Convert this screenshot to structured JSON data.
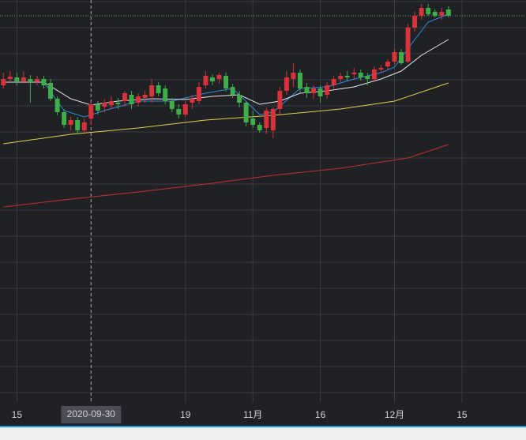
{
  "chart_data": {
    "type": "candlestick",
    "categories": [
      null,
      null,
      "15",
      null,
      null,
      null,
      null,
      null,
      null,
      null,
      null,
      null,
      null,
      "2020-09-30",
      null,
      null,
      null,
      null,
      null,
      null,
      null,
      null,
      null,
      null,
      null,
      null,
      null,
      "19",
      null,
      null,
      null,
      null,
      null,
      null,
      null,
      null,
      null,
      "11月",
      null,
      null,
      null,
      null,
      null,
      null,
      null,
      null,
      null,
      "16",
      null,
      null,
      null,
      null,
      null,
      null,
      null,
      null,
      null,
      null,
      "12月",
      null,
      null,
      null,
      null,
      null,
      null,
      null,
      null,
      null,
      "15",
      null,
      null,
      null,
      null,
      null,
      null,
      null,
      null,
      null
    ],
    "open": [
      402,
      410,
      412,
      407,
      410,
      407,
      410,
      405,
      385,
      368,
      352,
      358,
      345,
      360,
      378,
      375,
      377,
      380,
      382,
      390,
      380,
      386,
      388,
      402,
      398,
      382,
      372,
      365,
      380,
      382,
      402,
      412,
      410,
      414,
      400,
      390,
      380,
      360,
      352,
      348,
      345,
      372,
      395,
      410,
      418,
      400,
      392,
      398,
      390,
      402,
      410,
      414,
      416,
      418,
      414,
      410,
      422,
      426,
      432,
      444,
      432,
      475,
      490,
      500,
      495,
      490,
      498,
      null,
      null,
      null,
      null,
      null,
      null,
      null,
      null,
      null,
      null,
      null
    ],
    "high": [
      418,
      420,
      418,
      420,
      415,
      414,
      414,
      410,
      388,
      372,
      362,
      362,
      360,
      382,
      382,
      385,
      388,
      386,
      395,
      395,
      392,
      395,
      410,
      406,
      402,
      386,
      378,
      382,
      390,
      406,
      420,
      416,
      418,
      418,
      404,
      395,
      382,
      370,
      355,
      374,
      374,
      400,
      420,
      430,
      422,
      405,
      402,
      402,
      406,
      414,
      418,
      420,
      424,
      422,
      418,
      426,
      428,
      435,
      448,
      448,
      480,
      495,
      505,
      505,
      498,
      500,
      502,
      null,
      null,
      null,
      null,
      null,
      null,
      null,
      null,
      null,
      null,
      null
    ],
    "low": [
      398,
      406,
      402,
      404,
      380,
      402,
      398,
      382,
      364,
      348,
      345,
      340,
      340,
      352,
      365,
      368,
      372,
      372,
      375,
      372,
      375,
      380,
      380,
      388,
      378,
      368,
      360,
      362,
      372,
      378,
      398,
      402,
      404,
      394,
      386,
      374,
      350,
      348,
      342,
      340,
      335,
      365,
      390,
      400,
      392,
      386,
      385,
      380,
      385,
      398,
      406,
      408,
      410,
      408,
      402,
      406,
      418,
      422,
      428,
      428,
      430,
      470,
      485,
      490,
      488,
      485,
      488,
      null,
      null,
      null,
      null,
      null,
      null,
      null,
      null,
      null,
      null,
      null
    ],
    "close": [
      410,
      413,
      407,
      412,
      406,
      410,
      402,
      385,
      368,
      352,
      358,
      345,
      355,
      378,
      370,
      380,
      382,
      378,
      392,
      378,
      388,
      390,
      402,
      392,
      382,
      372,
      365,
      378,
      385,
      400,
      414,
      407,
      415,
      398,
      390,
      380,
      355,
      352,
      345,
      370,
      372,
      395,
      412,
      418,
      398,
      392,
      398,
      388,
      402,
      410,
      414,
      412,
      418,
      412,
      410,
      422,
      424,
      432,
      444,
      430,
      475,
      490,
      500,
      492,
      490,
      495,
      490,
      null,
      null,
      null,
      null,
      null,
      null,
      null,
      null,
      null,
      null,
      null
    ],
    "up_color": "#d9323a",
    "down_color": "#3fae49",
    "moving_averages": [
      {
        "color": "#2f8ee0",
        "x": [
          0,
          6,
          9,
          12,
          15,
          20,
          25,
          30,
          34,
          38,
          40,
          44,
          48,
          52,
          56,
          58,
          61,
          63,
          66
        ],
        "values": [
          406,
          406,
          370,
          362,
          370,
          382,
          382,
          392,
          398,
          365,
          368,
          398,
          400,
          410,
          418,
          425,
          460,
          482,
          492
        ]
      },
      {
        "color": "#e8e8e8",
        "x": [
          0,
          6,
          10,
          13,
          17,
          22,
          27,
          31,
          35,
          38,
          41,
          44,
          48,
          52,
          56,
          59,
          62,
          64,
          66
        ],
        "values": [
          406,
          406,
          385,
          377,
          382,
          385,
          384,
          388,
          390,
          378,
          382,
          392,
          395,
          400,
          410,
          420,
          440,
          450,
          460
        ]
      },
      {
        "color": "#e3cf4a",
        "x": [
          0,
          10,
          20,
          30,
          40,
          50,
          58,
          66
        ],
        "values": [
          328,
          340,
          348,
          358,
          364,
          372,
          382,
          405
        ]
      },
      {
        "color": "#c0302c",
        "x": [
          0,
          10,
          20,
          30,
          40,
          50,
          60,
          66
        ],
        "values": [
          248,
          258,
          267,
          277,
          288,
          297,
          310,
          327
        ]
      }
    ],
    "price_line": 490,
    "price_line_color": "#4caf50",
    "ylim": [
      0,
      510
    ],
    "grid": true,
    "grid_levels": [
      508,
      475,
      442,
      409,
      376,
      343,
      310,
      277,
      244,
      211,
      178,
      145,
      112,
      79,
      46,
      13
    ],
    "crosshair_index": 13
  }
}
